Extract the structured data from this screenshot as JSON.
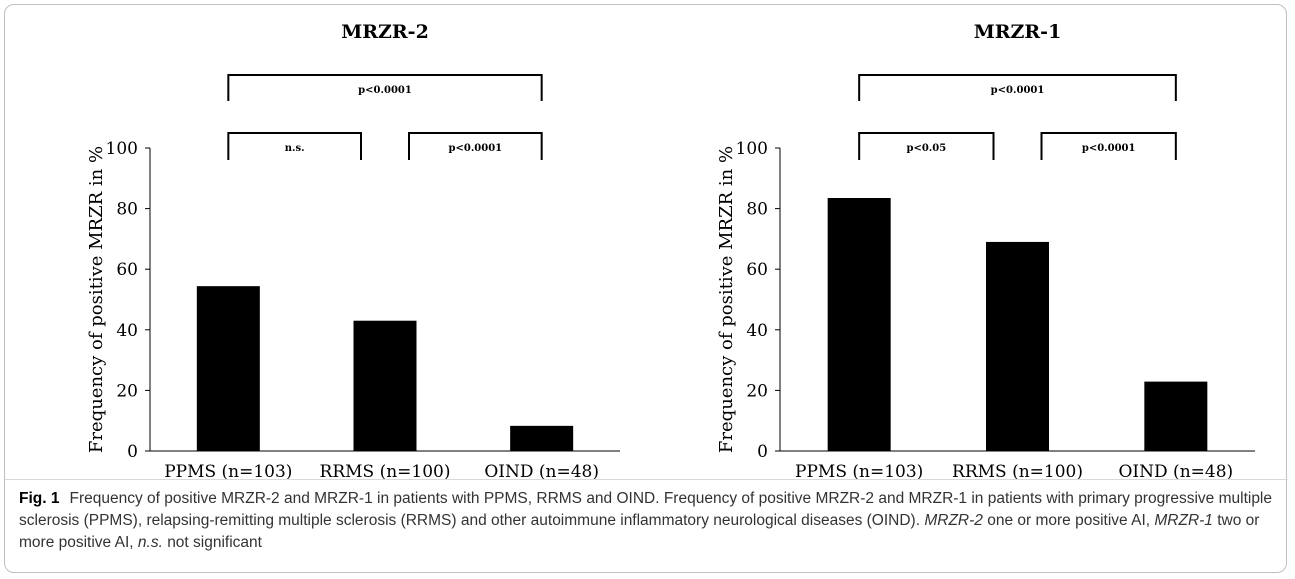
{
  "chart_data": [
    {
      "type": "bar",
      "title": "MRZR-2",
      "ylabel": "Frequency of positive MRZR in %",
      "xlabel": "",
      "categories": [
        "PPMS (n=103)",
        "RRMS (n=100)",
        "OIND (n=48)"
      ],
      "values": [
        54.4,
        43.0,
        8.3
      ],
      "ylim": [
        0,
        100
      ],
      "yticks": [
        0,
        20,
        40,
        60,
        80,
        100
      ],
      "grid": false,
      "color": "#000000",
      "significance": [
        {
          "from": 0,
          "to": 2,
          "label": "p<0.0001",
          "level": "top"
        },
        {
          "from": 0,
          "to": 1,
          "label": "n.s.",
          "level": "lower"
        },
        {
          "from": 1,
          "to": 2,
          "label": "p<0.0001",
          "level": "lower"
        }
      ]
    },
    {
      "type": "bar",
      "title": "MRZR-1",
      "ylabel": "Frequency of positive MRZR in %",
      "xlabel": "",
      "categories": [
        "PPMS (n=103)",
        "RRMS (n=100)",
        "OIND (n=48)"
      ],
      "values": [
        83.5,
        69.0,
        22.9
      ],
      "ylim": [
        0,
        100
      ],
      "yticks": [
        0,
        20,
        40,
        60,
        80,
        100
      ],
      "grid": false,
      "color": "#000000",
      "significance": [
        {
          "from": 0,
          "to": 2,
          "label": "p<0.0001",
          "level": "top"
        },
        {
          "from": 0,
          "to": 1,
          "label": "p<0.05",
          "level": "lower"
        },
        {
          "from": 1,
          "to": 2,
          "label": "p<0.0001",
          "level": "lower"
        }
      ]
    }
  ],
  "caption": {
    "label": "Fig. 1",
    "text1": "Frequency of positive MRZR-2 and MRZR-1 in patients with PPMS, RRMS and OIND. Frequency of positive MRZR-2 and MRZR-1 in patients with primary progressive multiple sclerosis (PPMS), relapsing-remitting multiple sclerosis (RRMS) and other autoimmune inflammatory neurological diseases (OIND).",
    "term1": "MRZR-2",
    "text2": "one or more positive AI,",
    "term2": "MRZR-1",
    "text3": "two or more positive AI,",
    "term3": "n.s.",
    "text4": "not significant"
  }
}
